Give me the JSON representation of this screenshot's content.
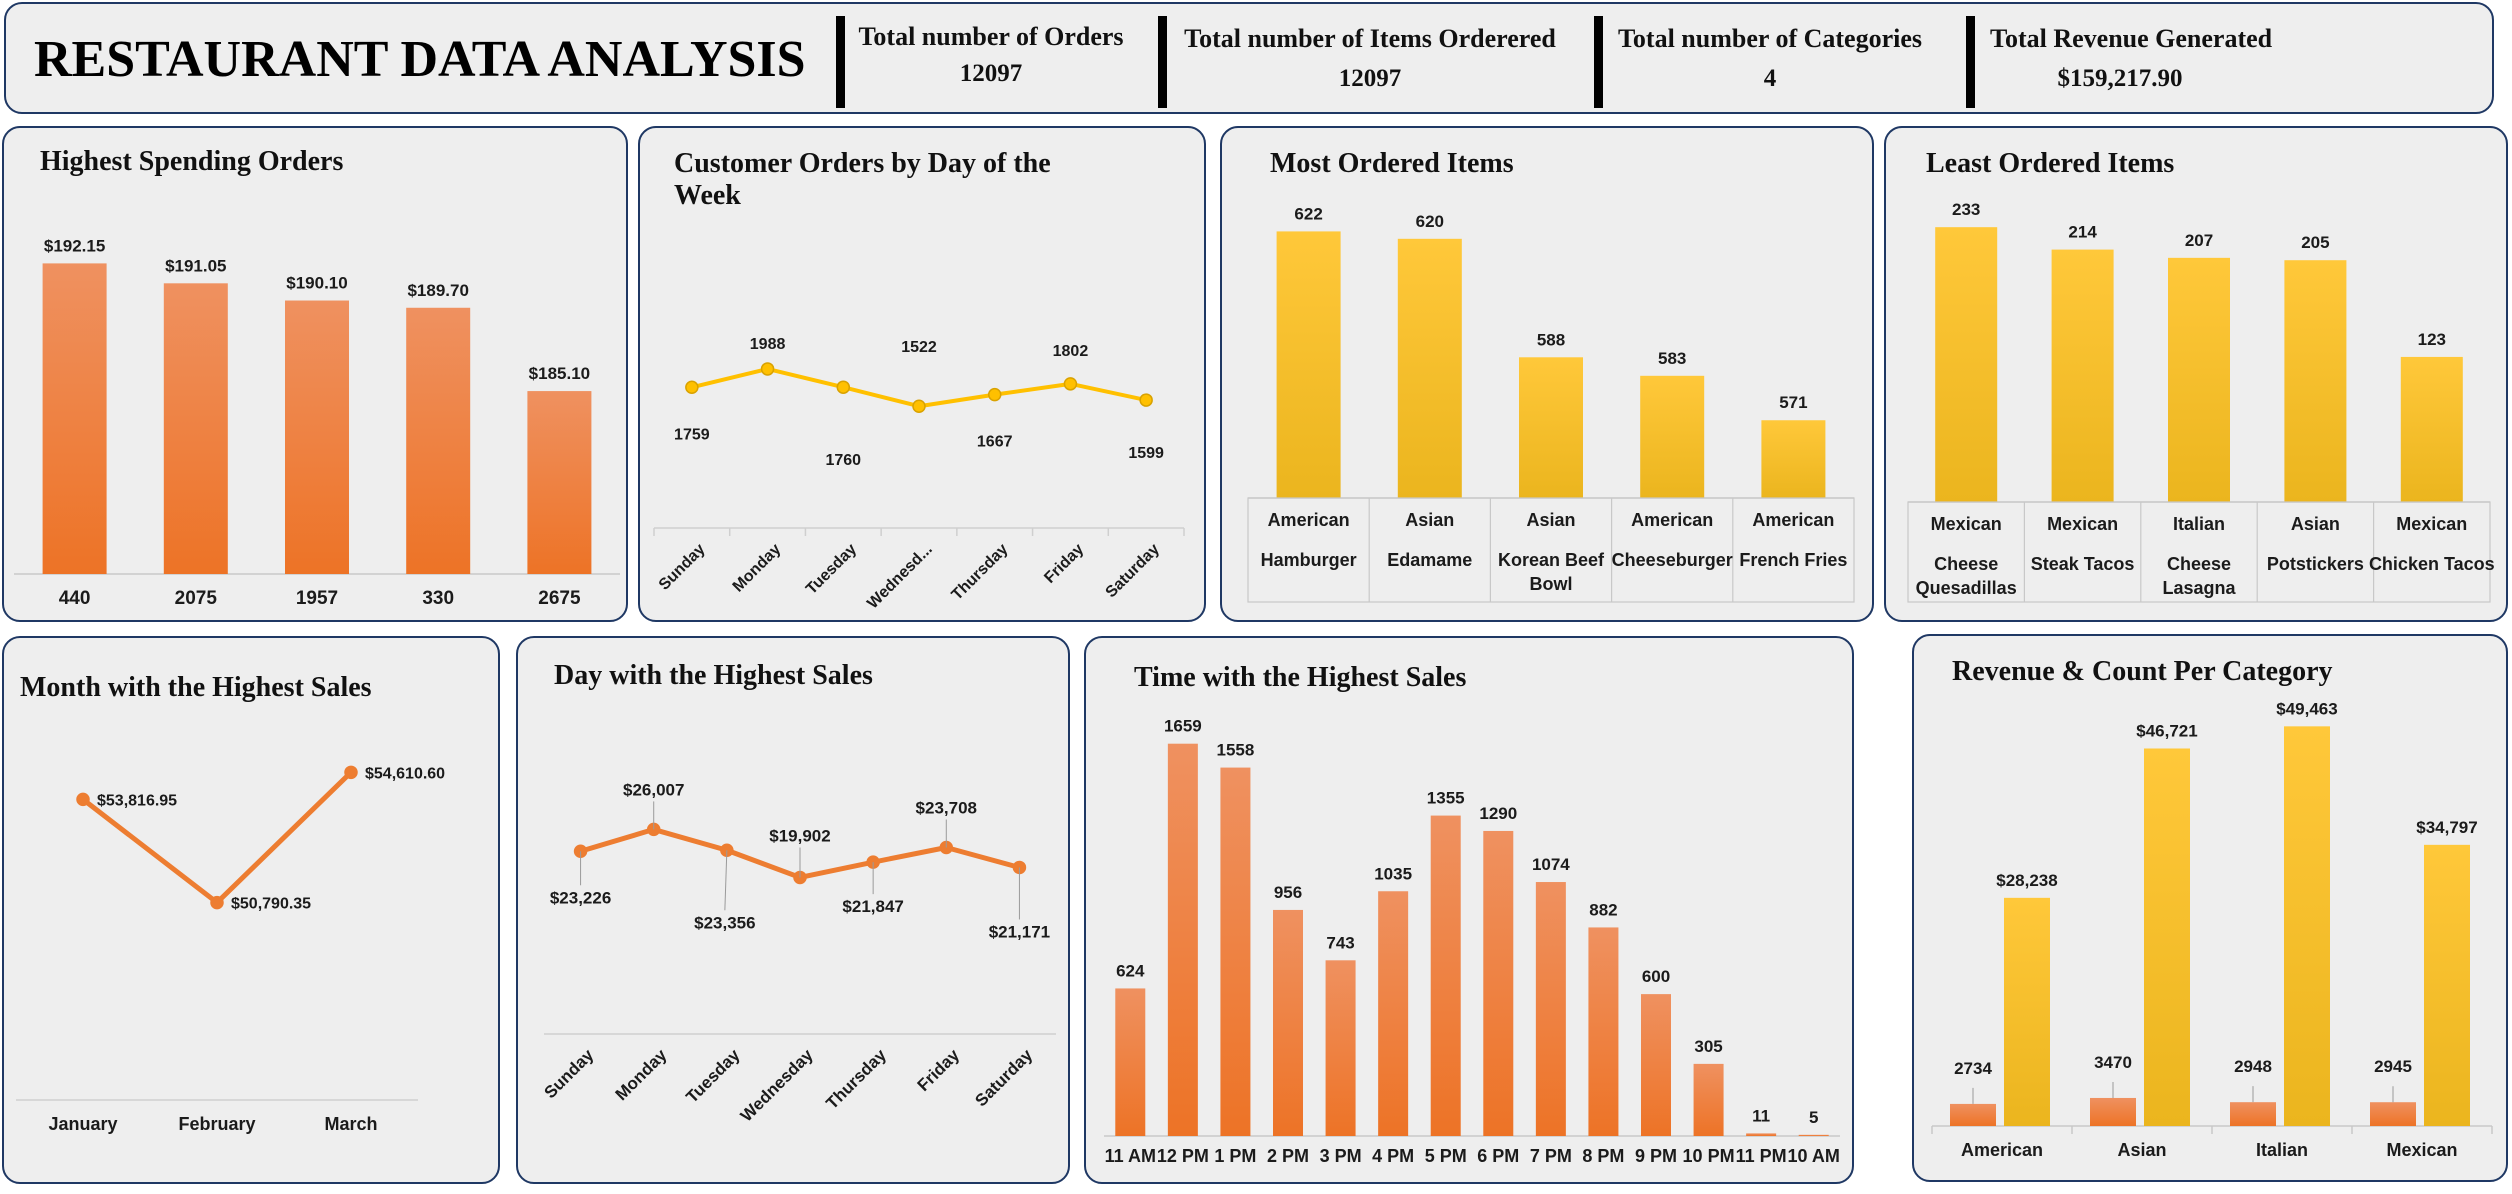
{
  "header": {
    "title": "RESTAURANT DATA ANALYSIS",
    "kpis": [
      {
        "label": "Total number of Orders",
        "value": "12097"
      },
      {
        "label": "Total number of Items Orderered",
        "value": "12097"
      },
      {
        "label": "Total number of Categories",
        "value": "4"
      },
      {
        "label": "Total Revenue Generated",
        "value": "$159,217.90"
      }
    ]
  },
  "colors": {
    "orange": "#ed7d31",
    "gold": "#ffc000",
    "border": "#1f3864",
    "panel_bg": "#eeeeee"
  },
  "chart_data": [
    {
      "id": "highest-spending",
      "type": "bar",
      "title": "Highest Spending Orders",
      "categories": [
        "440",
        "2075",
        "1957",
        "330",
        "2675"
      ],
      "values": [
        192.15,
        191.05,
        190.1,
        189.7,
        185.1
      ],
      "labels": [
        "$192.15",
        "$191.05",
        "$190.10",
        "$189.70",
        "$185.10"
      ],
      "ylim": [
        175,
        193
      ]
    },
    {
      "id": "orders-by-day",
      "type": "line",
      "title": "Customer Orders by Day of the Week",
      "categories": [
        "Sunday",
        "Monday",
        "Tuesday",
        "Wednesd...",
        "Thursday",
        "Friday",
        "Saturday"
      ],
      "values": [
        1759,
        1988,
        1760,
        1522,
        1667,
        1802,
        1599
      ],
      "ylim": [
        0,
        5000
      ]
    },
    {
      "id": "most-ordered",
      "type": "bar",
      "title": "Most Ordered Items",
      "categories": [
        {
          "group": "American",
          "item": "Hamburger"
        },
        {
          "group": "Asian",
          "item": "Edamame"
        },
        {
          "group": "Asian",
          "item": "Korean Beef Bowl"
        },
        {
          "group": "American",
          "item": "Cheeseburger"
        },
        {
          "group": "American",
          "item": "French Fries"
        }
      ],
      "values": [
        622,
        620,
        588,
        583,
        571
      ],
      "ylim": [
        550,
        624
      ]
    },
    {
      "id": "least-ordered",
      "type": "bar",
      "title": "Least Ordered Items",
      "categories": [
        {
          "group": "Mexican",
          "item": "Cheese Quesadillas"
        },
        {
          "group": "Mexican",
          "item": "Steak Tacos"
        },
        {
          "group": "Italian",
          "item": "Cheese Lasagna"
        },
        {
          "group": "Asian",
          "item": "Potstickers"
        },
        {
          "group": "Mexican",
          "item": "Chicken Tacos"
        }
      ],
      "values": [
        233,
        214,
        207,
        205,
        123
      ],
      "ylim": [
        0,
        234
      ]
    },
    {
      "id": "month-sales",
      "type": "line",
      "title": "Month with the Highest Sales",
      "categories": [
        "January",
        "February",
        "March"
      ],
      "values": [
        53816.95,
        50790.35,
        54610.6
      ],
      "labels": [
        "$53,816.95",
        "$50,790.35",
        "$54,610.60"
      ],
      "ylim": [
        45000,
        55500
      ]
    },
    {
      "id": "day-sales",
      "type": "line",
      "title": "Day with the Highest Sales",
      "categories": [
        "Sunday",
        "Monday",
        "Tuesday",
        "Wednesday",
        "Thursday",
        "Friday",
        "Saturday"
      ],
      "values": [
        23226,
        26007,
        23356,
        19902,
        21847,
        23708,
        21171
      ],
      "labels": [
        "$23,226",
        "$26,007",
        "$23,356",
        "$19,902",
        "$21,847",
        "$23,708",
        "$21,171"
      ],
      "ylim": [
        0,
        60000
      ]
    },
    {
      "id": "time-sales",
      "type": "bar",
      "title": "Time with the Highest Sales",
      "categories": [
        "11 AM",
        "12 PM",
        "1 PM",
        "2 PM",
        "3 PM",
        "4 PM",
        "5 PM",
        "6 PM",
        "7 PM",
        "8 PM",
        "9 PM",
        "10 PM",
        "11 PM",
        "10 AM"
      ],
      "values": [
        624,
        1659,
        1558,
        956,
        743,
        1035,
        1355,
        1290,
        1074,
        882,
        600,
        305,
        11,
        5
      ],
      "ylim": [
        0,
        1700
      ]
    },
    {
      "id": "category-revenue-count",
      "type": "bar",
      "title": "Revenue & Count Per Category",
      "categories": [
        "American",
        "Asian",
        "Italian",
        "Mexican"
      ],
      "series": [
        {
          "values": [
            2734,
            3470,
            2948,
            2945
          ]
        },
        {
          "values": [
            28238,
            46721,
            49463,
            34797
          ]
        }
      ],
      "labels": [
        [
          "2734",
          "3470",
          "2948",
          "2945"
        ],
        [
          "$28,238",
          "$46,721",
          "$49,463",
          "$34,797"
        ]
      ],
      "ylim": [
        0,
        50000
      ]
    }
  ]
}
